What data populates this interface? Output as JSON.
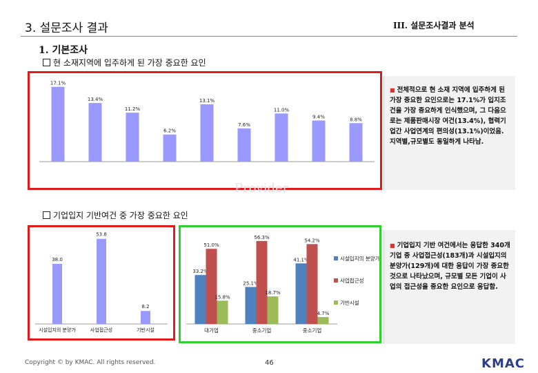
{
  "header": {
    "page_title": "3. 설문조사 결과",
    "chapter": "III. 설문조사결과 분석"
  },
  "section": {
    "title": "1. 기본조사"
  },
  "q1": {
    "heading": "현 소재지역에 입주하게 된 가장 중요한 요인",
    "note": "전체적으로 현 소재 지역에 입주하게 된 가장 중요한 요인으로는 17.1%가 입지조건을 가장 중요하게 인식했으며, 그 다음으로는 제품판매시장 여건(13.4%), 협력기업간 사업연계의 편의성(13.1%)이었음. 지역별,규모별도 동일하게 나타남."
  },
  "q2": {
    "heading": "기업입지 기반여건 중 가장 중요한 요인",
    "note": "기업입지 기반 여건에서는 응답한 340개 기업 중 사업접근성(183개)과 시설입지의 분양가(129개)에 대한 응답이 가장 중요한 것으로 나타났으며, 규모별 모든 기업이 사업의 접근성을 중요한 요인으로 응답함."
  },
  "watermark": "Provider",
  "chart_data": [
    {
      "type": "bar",
      "colors": [
        "#9999ff"
      ],
      "value_labels": [
        "17.1%",
        "13.4%",
        "11.2%",
        "6.2%",
        "13.1%",
        "7.6%",
        "11.0%",
        "9.4%",
        "8.8%"
      ],
      "values": [
        17.1,
        13.4,
        11.2,
        6.2,
        13.1,
        7.6,
        11.0,
        9.4,
        8.8
      ],
      "ylim": [
        0,
        18
      ]
    },
    {
      "type": "bar",
      "colors": [
        "#9999ff"
      ],
      "categories": [
        "시설입지의 분양가",
        "사업접근성",
        "기반시설"
      ],
      "value_labels": [
        "38.0",
        "53.8",
        "8.2"
      ],
      "values": [
        38.0,
        53.8,
        8.2
      ],
      "ylim": [
        0,
        55
      ]
    },
    {
      "type": "bar",
      "categories": [
        "대기업",
        "중소기업",
        "중소기업"
      ],
      "series": [
        {
          "name": "시설입지의 분양가",
          "color": "#4f81bd",
          "values": [
            33.2,
            25.1,
            41.1
          ],
          "labels": [
            "33.2%",
            "25.1%",
            "41.1%"
          ]
        },
        {
          "name": "사업접근성",
          "color": "#c0504d",
          "values": [
            51.0,
            56.3,
            54.2
          ],
          "labels": [
            "51.0%",
            "56.3%",
            "54.2%"
          ]
        },
        {
          "name": "기반시설",
          "color": "#9bbb59",
          "values": [
            15.8,
            18.7,
            4.7
          ],
          "labels": [
            "15.8%",
            "18.7%",
            "4.7%"
          ]
        }
      ],
      "ylim": [
        0,
        60
      ]
    }
  ],
  "footer": {
    "copyright": "Copyright © by KMAC. All rights reserved.",
    "page_number": "46",
    "logo": "KMAC"
  }
}
